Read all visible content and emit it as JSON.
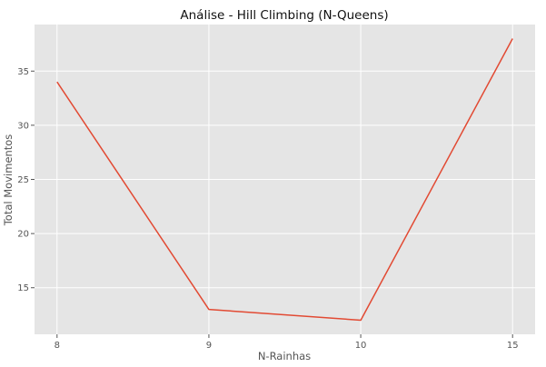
{
  "chart_data": {
    "type": "line",
    "title": "Análise - Hill Climbing (N-Queens)",
    "xlabel": "N-Rainhas",
    "ylabel": "Total Movimentos",
    "categories": [
      "8",
      "9",
      "10",
      "15"
    ],
    "series": [
      {
        "values": [
          34,
          13,
          12,
          38
        ],
        "color": "#E24A33"
      }
    ],
    "y_ticks": [
      15,
      20,
      25,
      30,
      35
    ],
    "ylim": [
      10.7,
      39.3
    ],
    "grid": true,
    "background": "#E5E5E5",
    "grid_color": "#FFFFFF"
  }
}
